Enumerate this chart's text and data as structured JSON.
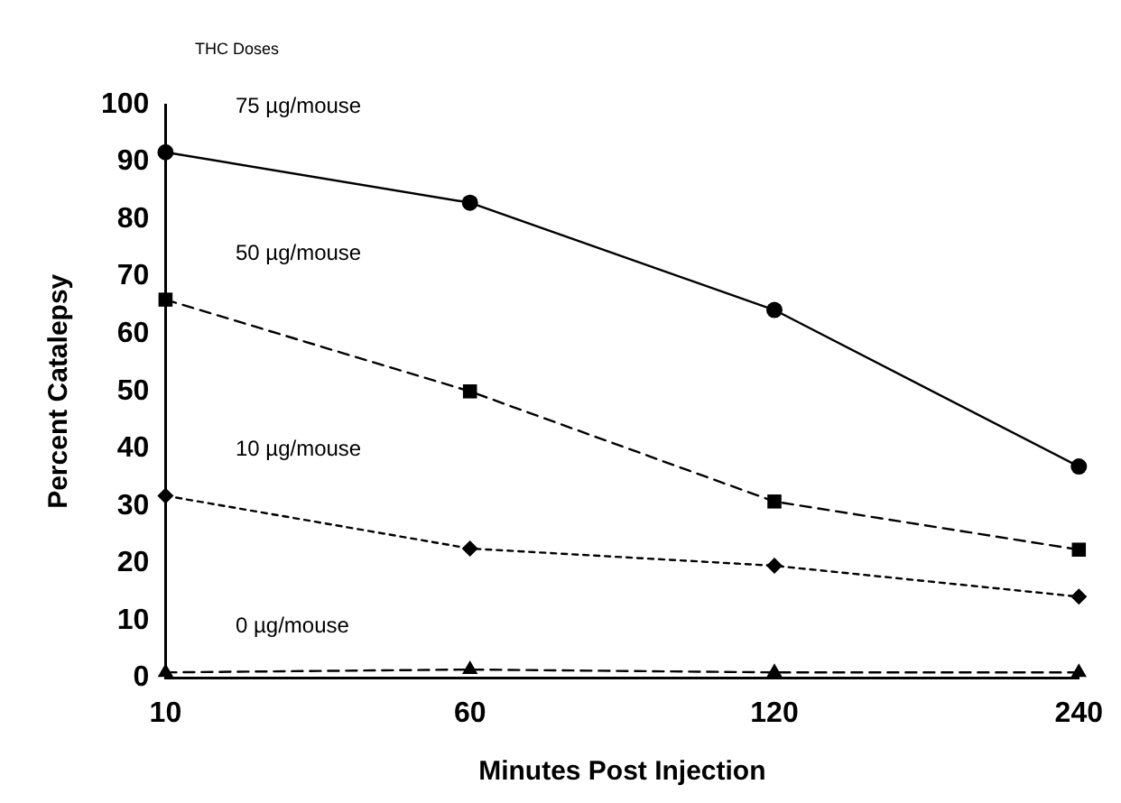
{
  "chart_data": {
    "type": "line",
    "legend_title": "THC Doses",
    "xlabel": "Minutes Post Injection",
    "ylabel": "Percent Catalepsy",
    "categories": [
      "10",
      "60",
      "120",
      "240"
    ],
    "ylim": [
      0,
      100
    ],
    "yticks": [
      0,
      10,
      20,
      30,
      40,
      50,
      60,
      70,
      80,
      90,
      100
    ],
    "grid": false,
    "legend": false,
    "series": [
      {
        "name": "75 µg/mouse",
        "color": "#000000",
        "marker": "circle",
        "line_style": "solid",
        "values": [
          91.7,
          82.9,
          64.2,
          36.9
        ]
      },
      {
        "name": "50 µg/mouse",
        "color": "#000000",
        "marker": "square",
        "line_style": "dashed",
        "values": [
          66,
          50,
          30.8,
          22.4
        ]
      },
      {
        "name": "10 µg/mouse",
        "color": "#000000",
        "marker": "diamond",
        "line_style": "dotted",
        "values": [
          31.8,
          22.6,
          19.6,
          14.2
        ]
      },
      {
        "name": "0 µg/mouse",
        "color": "#000000",
        "marker": "triangle",
        "line_style": "dashed",
        "values": [
          1,
          1.5,
          1,
          1
        ]
      }
    ]
  }
}
